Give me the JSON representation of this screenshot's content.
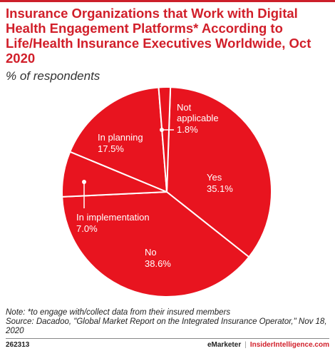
{
  "header": {
    "title": "Insurance Organizations that Work with Digital Health Engagement Platforms* According to Life/Health Insurance Executives Worldwide, Oct 2020",
    "subtitle": "% of respondents"
  },
  "chart_data": {
    "type": "pie",
    "title": "Insurance Organizations that Work with Digital Health Engagement Platforms* According to Life/Health Insurance Executives Worldwide, Oct 2020",
    "subtitle": "% of respondents",
    "slices": [
      {
        "label": "Yes",
        "value": 35.1,
        "value_label": "35.1%"
      },
      {
        "label": "No",
        "value": 38.6,
        "value_label": "38.6%"
      },
      {
        "label": "In implementation",
        "value": 7.0,
        "value_label": "7.0%"
      },
      {
        "label": "In planning",
        "value": 17.5,
        "value_label": "17.5%"
      },
      {
        "label": "Not applicable",
        "value": 1.8,
        "value_label": "1.8%"
      }
    ],
    "colors": {
      "fill": "#e8141f",
      "border": "#ffffff"
    }
  },
  "notes": {
    "note": "Note: *to engage with/collect data from their insured members",
    "source": "Source: Dacadoo, \"Global Market Report on the Integrated Insurance Operator,\" Nov 18, 2020"
  },
  "footer": {
    "id": "262313",
    "brand": "eMarketer",
    "brand2": "InsiderIntelligence.com"
  }
}
